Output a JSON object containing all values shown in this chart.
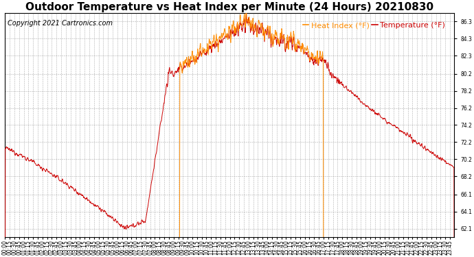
{
  "title": "Outdoor Temperature vs Heat Index per Minute (24 Hours) 20210830",
  "copyright_text": "Copyright 2021 Cartronics.com",
  "legend_heat_index": "Heat Index (°F)",
  "legend_temperature": "Temperature (°F)",
  "heat_index_color": "#FF8C00",
  "temperature_color": "#CC0000",
  "background_color": "#ffffff",
  "grid_color": "#999999",
  "ylim_min": 61.1,
  "ylim_max": 87.3,
  "yticks": [
    62.1,
    64.1,
    66.1,
    68.2,
    70.2,
    72.2,
    74.2,
    76.2,
    78.2,
    80.2,
    82.3,
    84.3,
    86.3
  ],
  "title_fontsize": 11,
  "copyright_fontsize": 7,
  "tick_fontsize": 5.5,
  "legend_fontsize": 8,
  "figwidth": 6.9,
  "figheight": 3.75,
  "dpi": 100
}
